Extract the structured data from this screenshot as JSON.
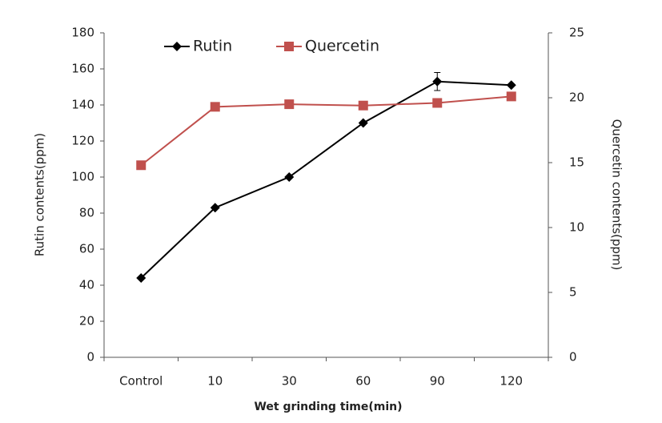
{
  "chart_data": {
    "type": "line",
    "categories": [
      "Control",
      "10",
      "30",
      "60",
      "90",
      "120"
    ],
    "x_label": "Wet grinding  time(min)",
    "y_label": "Rutin contents(ppm)",
    "y2_label": "Quercetin contents(ppm)",
    "ylim": [
      0,
      180
    ],
    "yticks": [
      0,
      20,
      40,
      60,
      80,
      100,
      120,
      140,
      160,
      180
    ],
    "y2lim": [
      0,
      25
    ],
    "y2ticks": [
      0,
      5,
      10,
      15,
      20,
      25
    ],
    "legend": "top",
    "series": [
      {
        "name": "Rutin",
        "color": "#000000",
        "marker": "diamond",
        "values": [
          44,
          83,
          100,
          130,
          153,
          151
        ],
        "errors": [
          null,
          null,
          null,
          null,
          5,
          null
        ]
      },
      {
        "name": "Quercetin",
        "color": "#c0504d",
        "marker": "square",
        "axis": "y2",
        "values": [
          14.8,
          19.3,
          19.5,
          19.4,
          19.6,
          20.1
        ]
      }
    ]
  }
}
